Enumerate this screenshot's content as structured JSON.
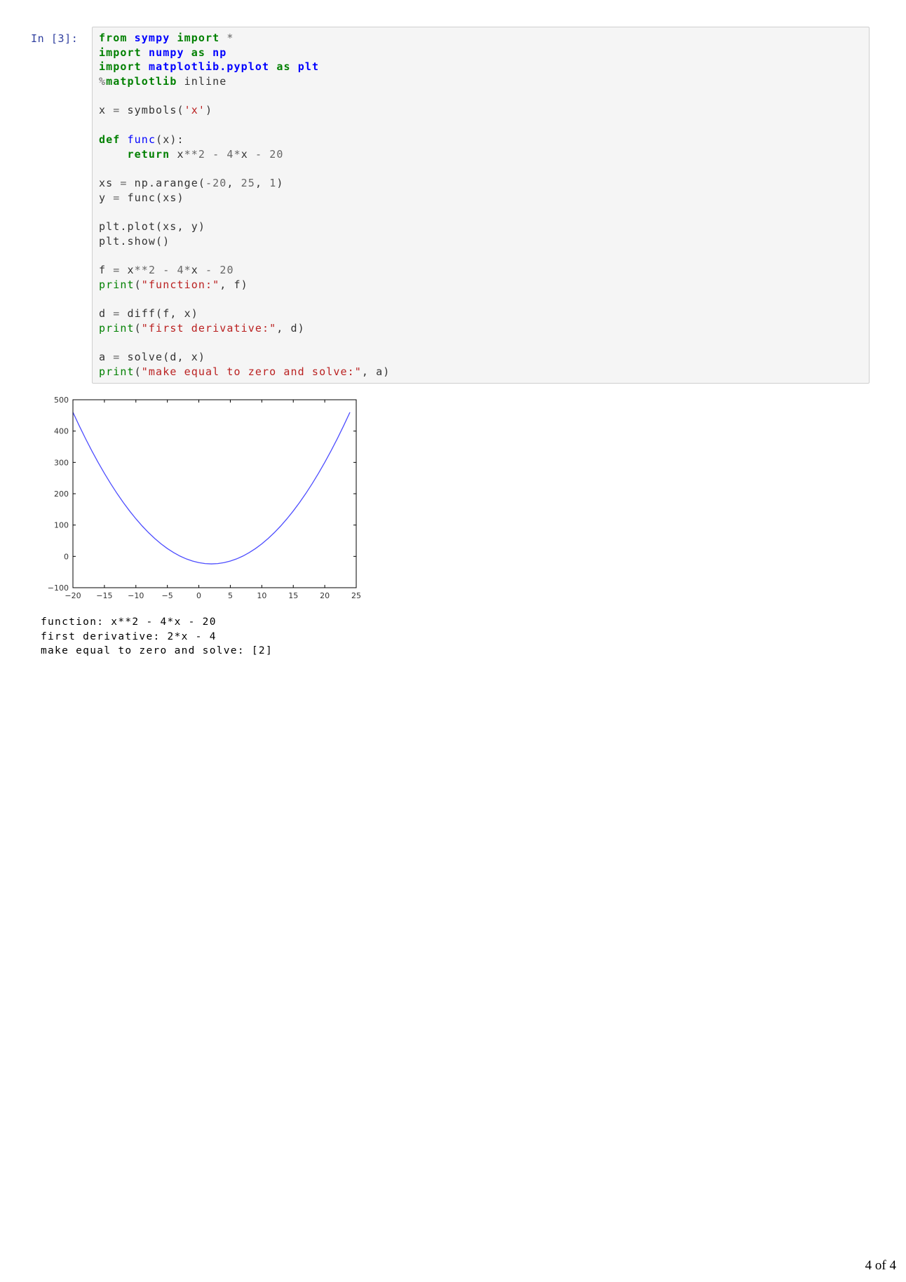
{
  "cell": {
    "prompt": "In [3]:",
    "code_lines": [
      [
        {
          "t": "from",
          "c": "kw"
        },
        {
          "t": " "
        },
        {
          "t": "sympy",
          "c": "mod"
        },
        {
          "t": " "
        },
        {
          "t": "import",
          "c": "kw"
        },
        {
          "t": " "
        },
        {
          "t": "*",
          "c": "op"
        }
      ],
      [
        {
          "t": "import",
          "c": "kw"
        },
        {
          "t": " "
        },
        {
          "t": "numpy",
          "c": "mod"
        },
        {
          "t": " "
        },
        {
          "t": "as",
          "c": "kw"
        },
        {
          "t": " "
        },
        {
          "t": "np",
          "c": "mod"
        }
      ],
      [
        {
          "t": "import",
          "c": "kw"
        },
        {
          "t": " "
        },
        {
          "t": "matplotlib.pyplot",
          "c": "mod"
        },
        {
          "t": " "
        },
        {
          "t": "as",
          "c": "kw"
        },
        {
          "t": " "
        },
        {
          "t": "plt",
          "c": "mod"
        }
      ],
      [
        {
          "t": "%",
          "c": "op"
        },
        {
          "t": "matplotlib",
          "c": "kw"
        },
        {
          "t": " inline"
        }
      ],
      [],
      [
        {
          "t": "x "
        },
        {
          "t": "=",
          "c": "op"
        },
        {
          "t": " symbols("
        },
        {
          "t": "'x'",
          "c": "str"
        },
        {
          "t": ")"
        }
      ],
      [],
      [
        {
          "t": "def",
          "c": "kw"
        },
        {
          "t": " "
        },
        {
          "t": "func",
          "c": "fn"
        },
        {
          "t": "(x):"
        }
      ],
      [
        {
          "t": "    "
        },
        {
          "t": "return",
          "c": "kw"
        },
        {
          "t": " x"
        },
        {
          "t": "**",
          "c": "op"
        },
        {
          "t": "2",
          "c": "num"
        },
        {
          "t": " "
        },
        {
          "t": "-",
          "c": "op"
        },
        {
          "t": " "
        },
        {
          "t": "4",
          "c": "num"
        },
        {
          "t": "*",
          "c": "op"
        },
        {
          "t": "x "
        },
        {
          "t": "-",
          "c": "op"
        },
        {
          "t": " "
        },
        {
          "t": "20",
          "c": "num"
        }
      ],
      [],
      [
        {
          "t": "xs "
        },
        {
          "t": "=",
          "c": "op"
        },
        {
          "t": " np.arange("
        },
        {
          "t": "-20",
          "c": "num"
        },
        {
          "t": ", "
        },
        {
          "t": "25",
          "c": "num"
        },
        {
          "t": ", "
        },
        {
          "t": "1",
          "c": "num"
        },
        {
          "t": ")"
        }
      ],
      [
        {
          "t": "y "
        },
        {
          "t": "=",
          "c": "op"
        },
        {
          "t": " func(xs)"
        }
      ],
      [],
      [
        {
          "t": "plt.plot(xs, y)"
        }
      ],
      [
        {
          "t": "plt.show()"
        }
      ],
      [],
      [
        {
          "t": "f "
        },
        {
          "t": "=",
          "c": "op"
        },
        {
          "t": " x"
        },
        {
          "t": "**",
          "c": "op"
        },
        {
          "t": "2",
          "c": "num"
        },
        {
          "t": " "
        },
        {
          "t": "-",
          "c": "op"
        },
        {
          "t": " "
        },
        {
          "t": "4",
          "c": "num"
        },
        {
          "t": "*",
          "c": "op"
        },
        {
          "t": "x "
        },
        {
          "t": "-",
          "c": "op"
        },
        {
          "t": " "
        },
        {
          "t": "20",
          "c": "num"
        }
      ],
      [
        {
          "t": "print",
          "c": "bi"
        },
        {
          "t": "("
        },
        {
          "t": "\"function:\"",
          "c": "str"
        },
        {
          "t": ", f)"
        }
      ],
      [],
      [
        {
          "t": "d "
        },
        {
          "t": "=",
          "c": "op"
        },
        {
          "t": " diff(f, x)"
        }
      ],
      [
        {
          "t": "print",
          "c": "bi"
        },
        {
          "t": "("
        },
        {
          "t": "\"first derivative:\"",
          "c": "str"
        },
        {
          "t": ", d)"
        }
      ],
      [],
      [
        {
          "t": "a "
        },
        {
          "t": "=",
          "c": "op"
        },
        {
          "t": " solve(d, x)"
        }
      ],
      [
        {
          "t": "print",
          "c": "bi"
        },
        {
          "t": "("
        },
        {
          "t": "\"make equal to zero and solve:\"",
          "c": "str"
        },
        {
          "t": ", a)"
        }
      ]
    ]
  },
  "chart_data": {
    "type": "line",
    "title": "",
    "xlabel": "",
    "ylabel": "",
    "xlim": [
      -20,
      25
    ],
    "ylim": [
      -100,
      500
    ],
    "x_ticks": [
      -20,
      -15,
      -10,
      -5,
      0,
      5,
      10,
      15,
      20,
      25
    ],
    "y_ticks": [
      -100,
      0,
      100,
      200,
      300,
      400,
      500
    ],
    "x_tick_labels": [
      "−20",
      "−15",
      "−10",
      "−5",
      "0",
      "5",
      "10",
      "15",
      "20",
      "25"
    ],
    "y_tick_labels": [
      "−100",
      "0",
      "100",
      "200",
      "300",
      "400",
      "500"
    ],
    "grid": false,
    "color": "#4d4dff",
    "series": [
      {
        "x": [
          -20,
          -19,
          -18,
          -17,
          -16,
          -15,
          -14,
          -13,
          -12,
          -11,
          -10,
          -9,
          -8,
          -7,
          -6,
          -5,
          -4,
          -3,
          -2,
          -1,
          0,
          1,
          2,
          3,
          4,
          5,
          6,
          7,
          8,
          9,
          10,
          11,
          12,
          13,
          14,
          15,
          16,
          17,
          18,
          19,
          20,
          21,
          22,
          23,
          24
        ],
        "y": [
          460,
          417,
          376,
          337,
          300,
          265,
          232,
          201,
          172,
          145,
          120,
          97,
          76,
          57,
          40,
          25,
          12,
          1,
          -8,
          -15,
          -20,
          -23,
          -24,
          -23,
          -20,
          -15,
          -8,
          1,
          12,
          25,
          40,
          57,
          76,
          97,
          120,
          145,
          172,
          201,
          232,
          265,
          300,
          337,
          376,
          417,
          460
        ]
      }
    ]
  },
  "output_lines": [
    "function: x**2 - 4*x - 20",
    "first derivative: 2*x - 4",
    "make equal to zero and solve: [2]"
  ],
  "page_number": "4 of 4"
}
